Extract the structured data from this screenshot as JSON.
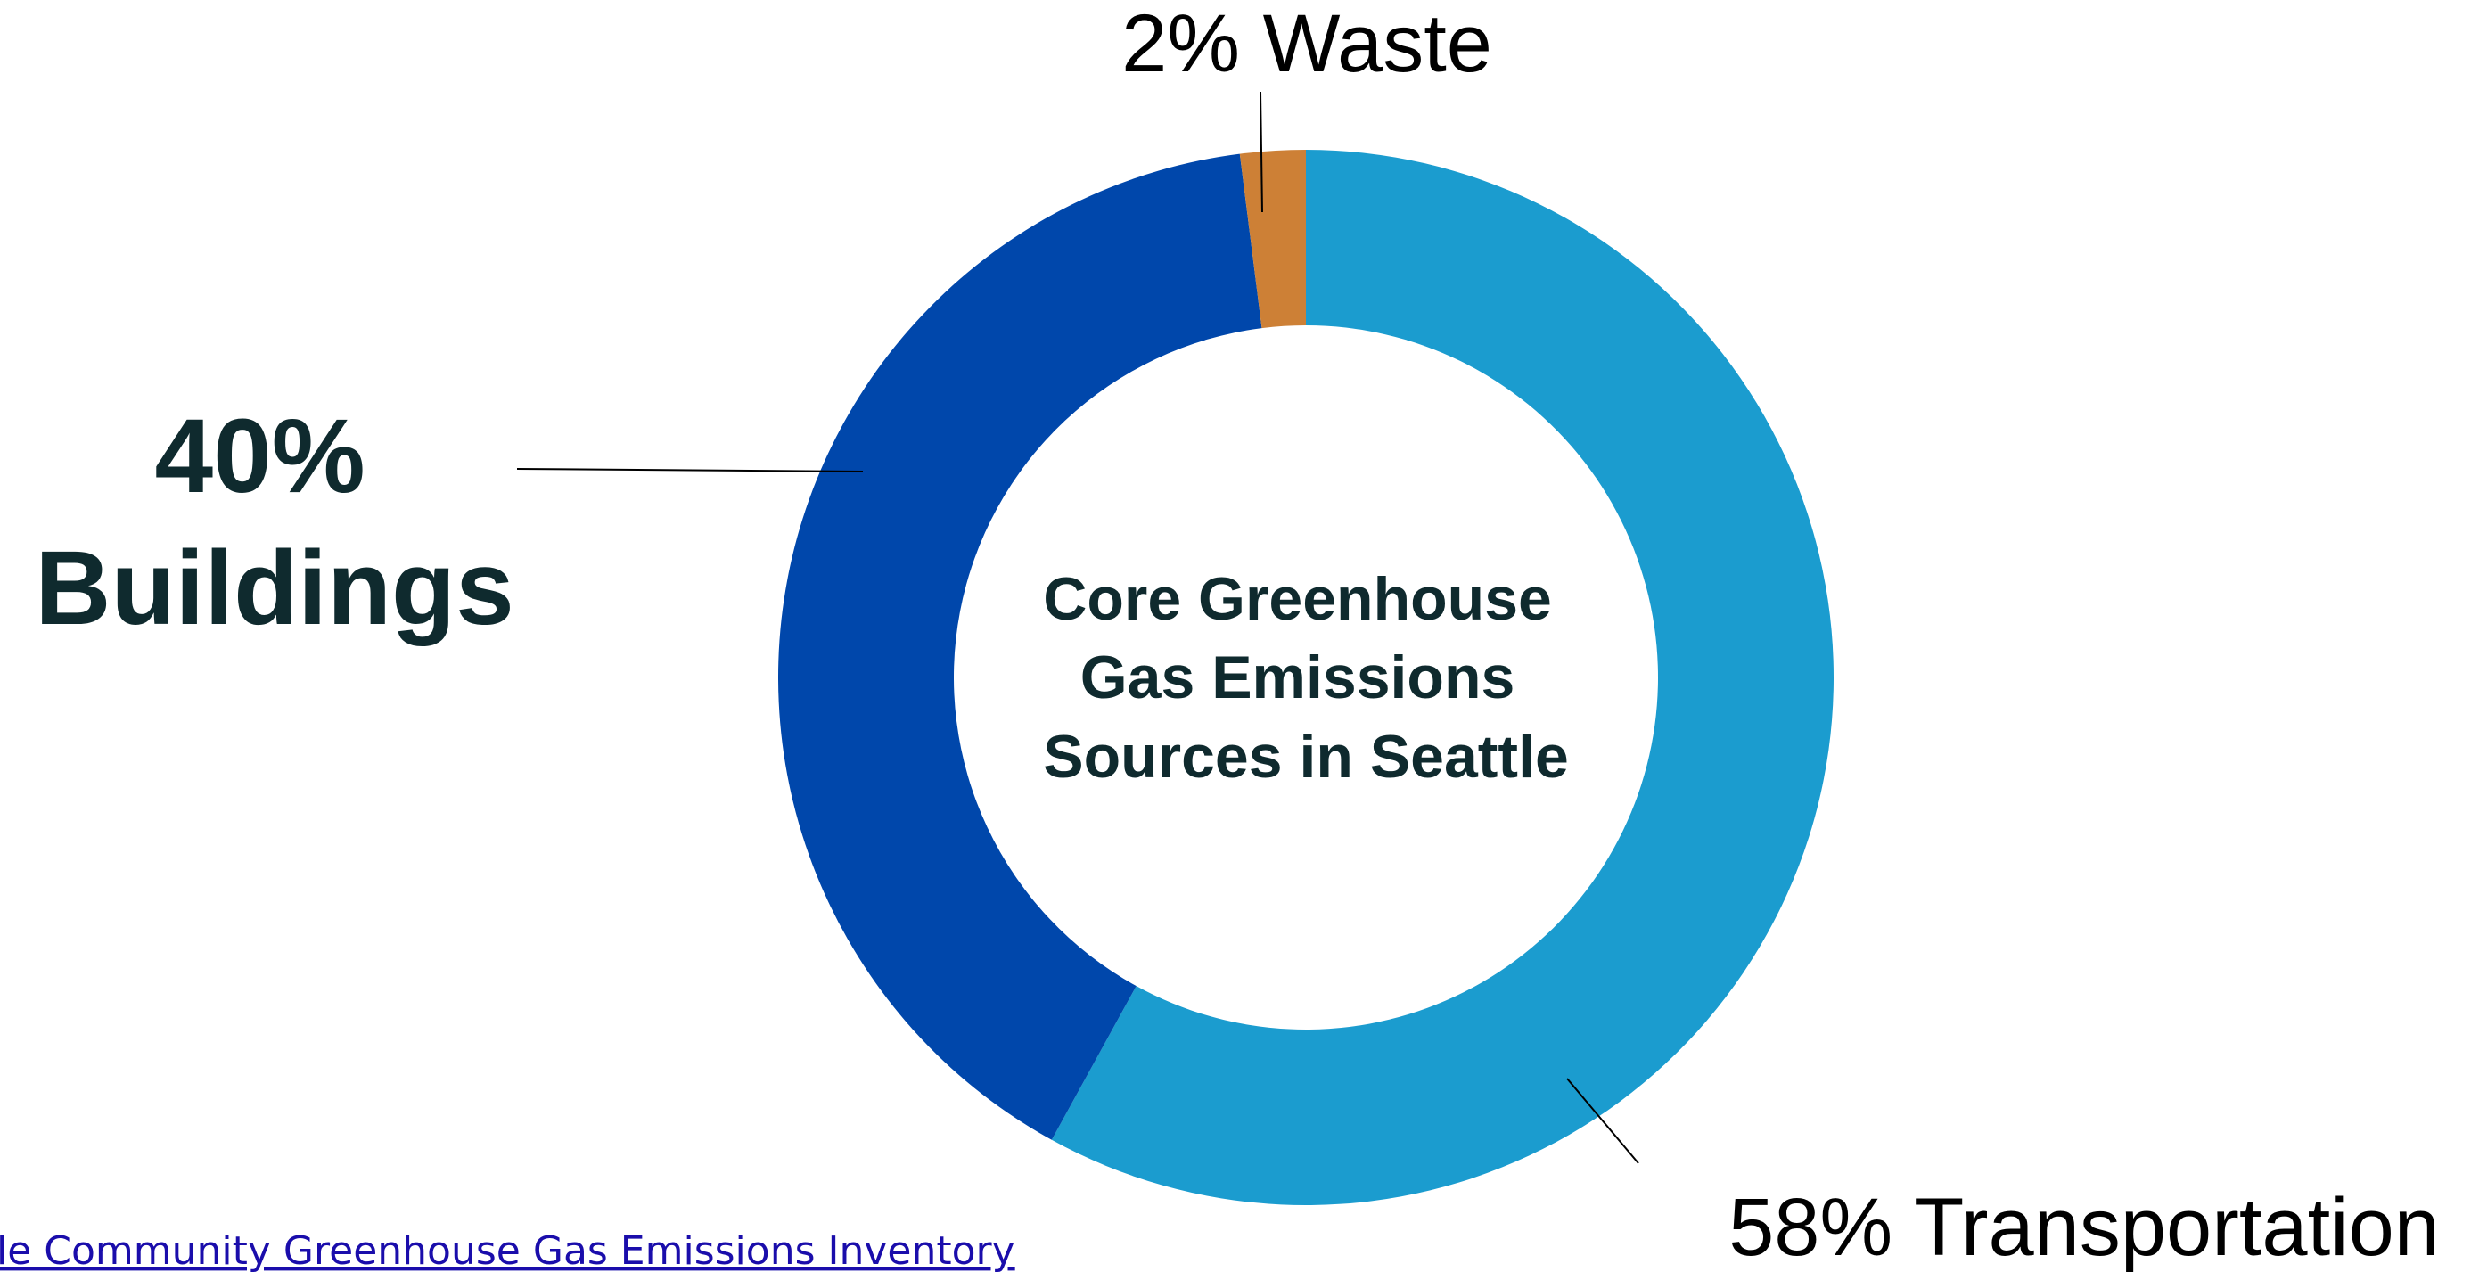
{
  "chart_data": {
    "type": "pie",
    "center_text": [
      "Core Greenhouse",
      "Gas Emissions",
      "Sources in Seattle"
    ],
    "categories": [
      "Transportation",
      "Buildings",
      "Waste"
    ],
    "values": [
      58,
      40,
      2
    ],
    "slices": [
      {
        "name": "Transportation",
        "value": 58,
        "color": "#1b9ccf",
        "label": "58% Transportation"
      },
      {
        "name": "Buildings",
        "value": 40,
        "color": "#0047ab",
        "label_lines": [
          "40%",
          "Buildings"
        ]
      },
      {
        "name": "Waste",
        "value": 2,
        "color": "#cd8036",
        "label": "2% Waste"
      }
    ],
    "source_text": "le Community Greenhouse Gas Emissions Inventory"
  }
}
